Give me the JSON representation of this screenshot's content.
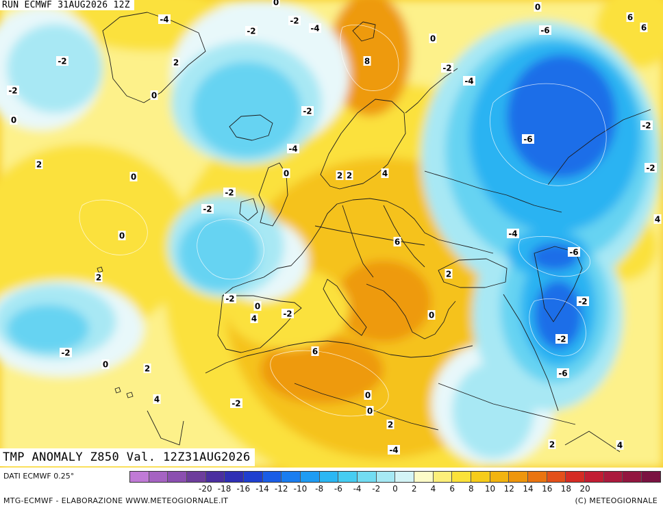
{
  "header": {
    "run_label": "RUN ECMWF 31AUG2026 12Z"
  },
  "footer": {
    "title": "TMP ANOMALY Z850 Val. 12Z31AUG2026",
    "data_source": "DATI ECMWF 0.25°",
    "credit_left": "MTG-ECMWF - ELABORAZIONE WWW.METEOGIORNALE.IT",
    "credit_right": "(C) METEOGIORNALE"
  },
  "colorbar": {
    "colors": [
      "#c07ad6",
      "#a563c2",
      "#8b4fb0",
      "#6d3d9c",
      "#4b2fa0",
      "#2f2fb4",
      "#1f3fcf",
      "#1a5de6",
      "#1a7df0",
      "#1e9cf3",
      "#2bb7f3",
      "#46cdf2",
      "#72dcf2",
      "#a6e9f4",
      "#d4f4f6",
      "#fdfbc8",
      "#fdef7a",
      "#fbe23a",
      "#f6cc1a",
      "#f2b410",
      "#ee960c",
      "#ea7410",
      "#e3501a",
      "#d52c24",
      "#c21d33",
      "#ab1a3d",
      "#92163f",
      "#7a1241"
    ],
    "tick_labels": [
      "-20",
      "-18",
      "-16",
      "-14",
      "-12",
      "-10",
      "-8",
      "-6",
      "-4",
      "-2",
      "0",
      "2",
      "4",
      "6",
      "8",
      "10",
      "12",
      "14",
      "16",
      "18",
      "20"
    ],
    "legend_min": -20,
    "legend_max": 20
  },
  "palette": {
    "hot": "#ee9a0e",
    "warm": "#f5c21c",
    "mild": "#fbe13c",
    "slightly_warm": "#fdf18a",
    "neutral": "#e8f8fa",
    "slightly_cold": "#a8e8f4",
    "cool": "#66d3f2",
    "cold": "#2bb3f2",
    "very_cold": "#1a6ee8"
  },
  "map": {
    "contour_labels": [
      "-4",
      "-2",
      "-4",
      "-2",
      "0",
      "-2",
      "0",
      "8",
      "-2",
      "-2",
      "-2",
      "0",
      "-4",
      "-6",
      "0",
      "6",
      "-2",
      "2",
      "0",
      "0",
      "-2",
      "-2",
      "0",
      "-4",
      "2",
      "2",
      "2",
      "4",
      "-6",
      "-2",
      "0",
      "0",
      "-2",
      "-2",
      "-2",
      "6",
      "-4",
      "4",
      "-6",
      "2",
      "-2",
      "0",
      "-2",
      "4",
      "2",
      "6",
      "-6",
      "-2",
      "0",
      "2",
      "-4",
      "2",
      "4",
      "6",
      "4",
      "2",
      "0",
      "0"
    ]
  }
}
